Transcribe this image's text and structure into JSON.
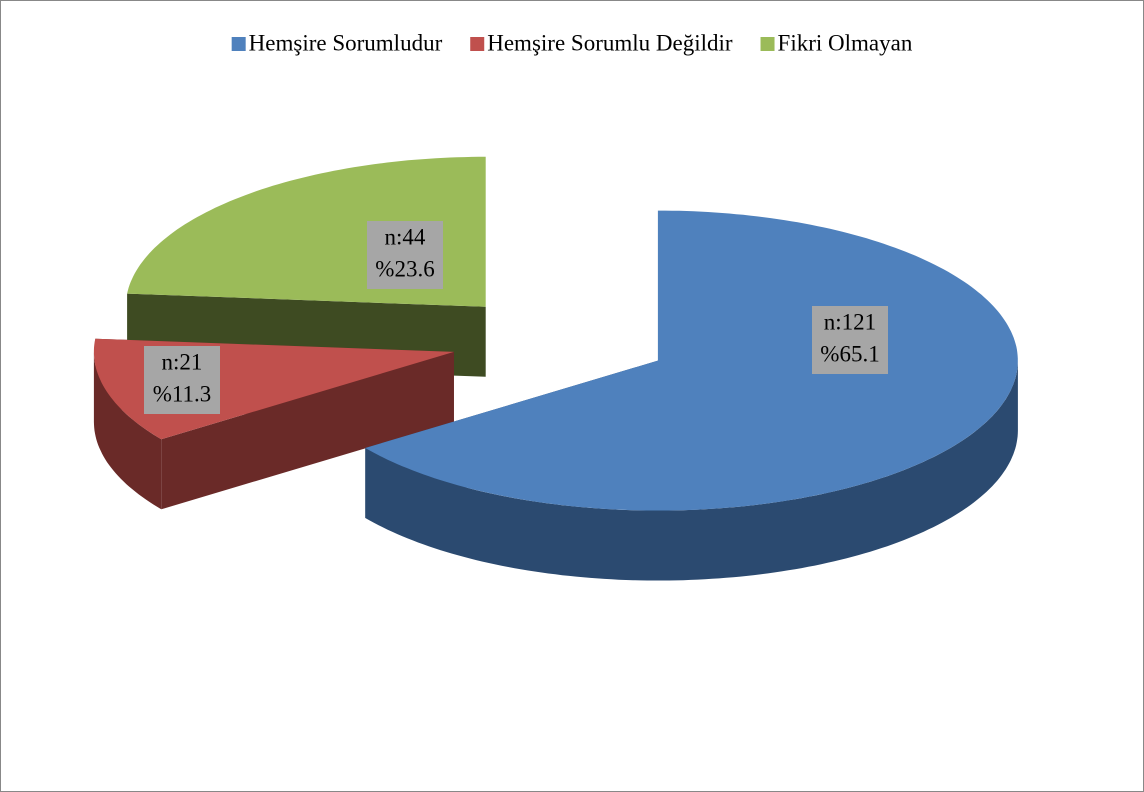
{
  "chart_data": {
    "type": "pie",
    "categories": [
      "Hemşire Sorumludur",
      "Hemşire Sorumlu Değildir",
      "Fikri Olmayan"
    ],
    "values": [
      65.1,
      11.3,
      23.6
    ],
    "value_labels": [
      "%65.1",
      "%11.3",
      "%23.6"
    ],
    "counts": [
      121,
      21,
      44
    ],
    "count_labels": [
      "n:121",
      "n:21",
      "n:44"
    ],
    "colors": [
      "#4f81bd",
      "#c0504d",
      "#9bbb59"
    ],
    "side_colors": [
      "#2b4a70",
      "#6a2a28",
      "#3e4b22"
    ],
    "legend": "top"
  }
}
